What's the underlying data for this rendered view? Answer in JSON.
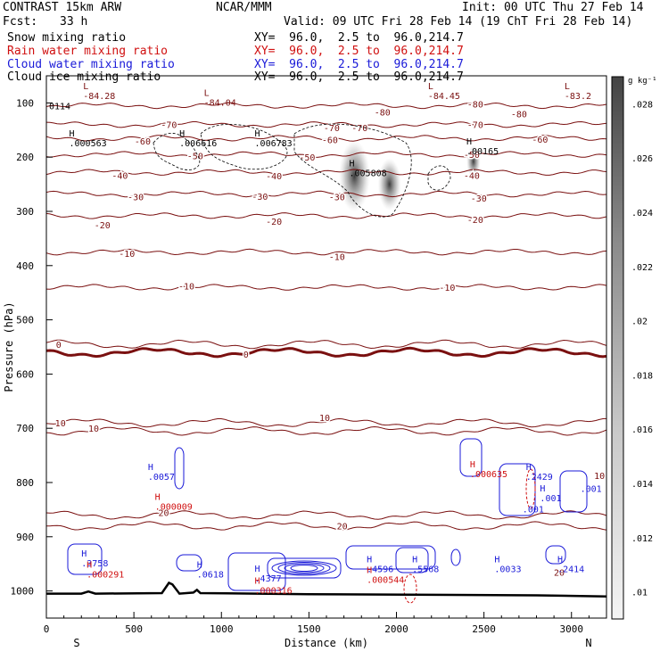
{
  "header": {
    "model": "CONTRAST 15km ARW",
    "center": "NCAR/MMM",
    "init": "Init: 00 UTC Thu 27 Feb 14",
    "fcst_label": "Fcst:",
    "fcst_value": "33 h",
    "valid": "Valid: 09 UTC Fri 28 Feb 14 (19 ChT Fri 28 Feb 14)"
  },
  "legend": [
    {
      "label": "Snow mixing ratio",
      "xy": "XY=  96.0,  2.5 to  96.0,214.7",
      "color": "#000000"
    },
    {
      "label": "Rain water mixing ratio",
      "xy": "XY=  96.0,  2.5 to  96.0,214.7",
      "color": "#d01010"
    },
    {
      "label": "Cloud water mixing ratio",
      "xy": "XY=  96.0,  2.5 to  96.0,214.7",
      "color": "#1a1ad8"
    },
    {
      "label": "Cloud ice mixing ratio",
      "xy": "XY=  96.0,  2.5 to  96.0,214.7",
      "color": "#000000"
    }
  ],
  "colors": {
    "temperature_contour": "#7a1010",
    "zero_isotherm": "#7a1010",
    "rain": "#d01010",
    "cloud_water": "#1a1ad8",
    "ice": "#000000",
    "terrain": "#000000"
  },
  "chart_data": {
    "type": "contour",
    "xlabel": "Distance (km)",
    "ylabel": "Pressure (hPa)",
    "xlim": [
      0,
      3200
    ],
    "ylim": [
      1050,
      50
    ],
    "x_ticks": [
      0,
      500,
      1000,
      1500,
      2000,
      2500,
      3000
    ],
    "y_ticks": [
      100,
      200,
      300,
      400,
      500,
      600,
      700,
      800,
      900,
      1000
    ],
    "x_end_labels": {
      "left": "S",
      "right": "N"
    },
    "colorbar": {
      "units": "g kg⁻¹",
      "ticks": [
        ".01",
        ".012",
        ".014",
        ".016",
        ".018",
        ".02",
        ".022",
        ".024",
        ".026",
        ".028"
      ]
    },
    "isotherms": [
      {
        "label": "-80",
        "p": 105
      },
      {
        "label": "-70",
        "p": 140
      },
      {
        "label": "-60",
        "p": 165
      },
      {
        "label": "-50",
        "p": 195
      },
      {
        "label": "-40",
        "p": 228
      },
      {
        "label": "-30",
        "p": 268
      },
      {
        "label": "-20",
        "p": 308
      },
      {
        "label": "-10",
        "p": 375
      },
      {
        "label": "-10",
        "p": 440
      },
      {
        "label": "0",
        "p": 545
      },
      {
        "label": "0",
        "p": 560
      },
      {
        "label": "10",
        "p": 705
      },
      {
        "label": "10",
        "p": 690
      },
      {
        "label": "20",
        "p": 860
      },
      {
        "label": "20",
        "p": 880
      }
    ],
    "isotherm_labels": [
      {
        "text": "-80",
        "x": 2450,
        "p": 102
      },
      {
        "text": "-80",
        "x": 1920,
        "p": 117
      },
      {
        "text": "-80",
        "x": 2700,
        "p": 120
      },
      {
        "text": "-70",
        "x": 700,
        "p": 140
      },
      {
        "text": "-70",
        "x": 1630,
        "p": 145
      },
      {
        "text": "-70",
        "x": 1790,
        "p": 145
      },
      {
        "text": "-70",
        "x": 2450,
        "p": 140
      },
      {
        "text": "-60",
        "x": 550,
        "p": 170
      },
      {
        "text": "-60",
        "x": 1620,
        "p": 168
      },
      {
        "text": "-60",
        "x": 2820,
        "p": 167
      },
      {
        "text": "-50",
        "x": 850,
        "p": 197
      },
      {
        "text": "-50",
        "x": 1490,
        "p": 200
      },
      {
        "text": "-50",
        "x": 2430,
        "p": 195
      },
      {
        "text": "-40",
        "x": 420,
        "p": 233
      },
      {
        "text": "-40",
        "x": 1300,
        "p": 234
      },
      {
        "text": "-40",
        "x": 2430,
        "p": 233
      },
      {
        "text": "-30",
        "x": 510,
        "p": 273
      },
      {
        "text": "-30",
        "x": 1220,
        "p": 272
      },
      {
        "text": "-30",
        "x": 1660,
        "p": 273
      },
      {
        "text": "-30",
        "x": 2470,
        "p": 275
      },
      {
        "text": "-20",
        "x": 320,
        "p": 325
      },
      {
        "text": "-20",
        "x": 1300,
        "p": 318
      },
      {
        "text": "-20",
        "x": 2450,
        "p": 315
      },
      {
        "text": "-10",
        "x": 460,
        "p": 377
      },
      {
        "text": "-10",
        "x": 1660,
        "p": 383
      },
      {
        "text": "-10",
        "x": 800,
        "p": 437
      },
      {
        "text": "-10",
        "x": 2290,
        "p": 440
      },
      {
        "text": "0",
        "x": 70,
        "p": 545
      },
      {
        "text": "0",
        "x": 1140,
        "p": 563
      },
      {
        "text": "10",
        "x": 80,
        "p": 690
      },
      {
        "text": "10",
        "x": 270,
        "p": 700
      },
      {
        "text": "10",
        "x": 1590,
        "p": 680
      },
      {
        "text": "10",
        "x": 3160,
        "p": 787
      },
      {
        "text": "20",
        "x": 670,
        "p": 855
      },
      {
        "text": "20",
        "x": 1690,
        "p": 880
      },
      {
        "text": "20",
        "x": 2930,
        "p": 965
      }
    ],
    "extrema": [
      {
        "mark": "L",
        "value": "-84.28",
        "x": 210,
        "p": 88,
        "color": "#7a1010"
      },
      {
        "mark": "L",
        "value": "-84.04",
        "x": 900,
        "p": 100,
        "color": "#7a1010"
      },
      {
        "mark": "L",
        "value": "-84.45",
        "x": 2180,
        "p": 88,
        "color": "#7a1010"
      },
      {
        "mark": "L",
        "value": "-83.2",
        "x": 2960,
        "p": 88,
        "color": "#7a1010"
      },
      {
        "mark": "H",
        "value": ".000563",
        "x": 130,
        "p": 175,
        "color": "#000000"
      },
      {
        "mark": "H",
        "value": ".006616",
        "x": 760,
        "p": 175,
        "color": "#000000"
      },
      {
        "mark": "H",
        "value": ".006783",
        "x": 1190,
        "p": 175,
        "color": "#000000"
      },
      {
        "mark": "H",
        "value": ".005808",
        "x": 1730,
        "p": 230,
        "color": "#000000"
      },
      {
        "mark": "H",
        "value": ".00165",
        "x": 2400,
        "p": 190,
        "color": "#000000"
      },
      {
        "mark": "H",
        "value": ".0057",
        "x": 580,
        "p": 790,
        "color": "#1a1ad8"
      },
      {
        "mark": "H",
        "value": ".000009",
        "x": 620,
        "p": 845,
        "color": "#d01010"
      },
      {
        "mark": "H",
        "value": ".000635",
        "x": 2420,
        "p": 785,
        "color": "#d01010"
      },
      {
        "mark": "H",
        "value": ".2429",
        "x": 2740,
        "p": 790,
        "color": "#1a1ad8"
      },
      {
        "mark": "H",
        "value": ".001",
        "x": 2820,
        "p": 830,
        "color": "#1a1ad8"
      },
      {
        "mark": "H",
        "value": ".3758",
        "x": 200,
        "p": 950,
        "color": "#1a1ad8"
      },
      {
        "mark": "H",
        "value": ".000291",
        "x": 230,
        "p": 970,
        "color": "#d01010"
      },
      {
        "mark": "H",
        "value": ".0618",
        "x": 860,
        "p": 970,
        "color": "#1a1ad8"
      },
      {
        "mark": "H",
        "value": ".4377",
        "x": 1190,
        "p": 978,
        "color": "#1a1ad8"
      },
      {
        "mark": "H",
        "value": ".000316",
        "x": 1190,
        "p": 1000,
        "color": "#d01010"
      },
      {
        "mark": "H",
        "value": ".4596",
        "x": 1830,
        "p": 960,
        "color": "#1a1ad8"
      },
      {
        "mark": "H",
        "value": ".000544",
        "x": 1830,
        "p": 980,
        "color": "#d01010"
      },
      {
        "mark": "H",
        "value": ".5568",
        "x": 2090,
        "p": 960,
        "color": "#1a1ad8"
      },
      {
        "mark": "H",
        "value": ".0033",
        "x": 2560,
        "p": 960,
        "color": "#1a1ad8"
      },
      {
        "mark": "H",
        "value": ".2414",
        "x": 2920,
        "p": 960,
        "color": "#1a1ad8"
      }
    ],
    "plain_labels": [
      {
        "text": "0114",
        "x": 15,
        "p": 112,
        "color": "#000000"
      },
      {
        "text": ".001",
        "x": 3050,
        "p": 817,
        "color": "#1a1ad8"
      },
      {
        "text": ".001",
        "x": 2720,
        "p": 855,
        "color": "#1a1ad8"
      }
    ],
    "ice_shading": [
      {
        "x": 1760,
        "p": 235,
        "dx": 40,
        "dp": 55,
        "max": ".028"
      },
      {
        "x": 1960,
        "p": 250,
        "dx": 30,
        "dp": 40,
        "max": ".018"
      },
      {
        "x": 2440,
        "p": 208,
        "dx": 18,
        "dp": 25,
        "max": ".014"
      }
    ],
    "terrain": [
      {
        "x": 0,
        "p": 1005
      },
      {
        "x": 200,
        "p": 1005
      },
      {
        "x": 240,
        "p": 1001
      },
      {
        "x": 280,
        "p": 1005
      },
      {
        "x": 660,
        "p": 1004
      },
      {
        "x": 700,
        "p": 985
      },
      {
        "x": 720,
        "p": 988
      },
      {
        "x": 760,
        "p": 1005
      },
      {
        "x": 840,
        "p": 1003
      },
      {
        "x": 860,
        "p": 998
      },
      {
        "x": 880,
        "p": 1004
      },
      {
        "x": 1500,
        "p": 1006
      },
      {
        "x": 2200,
        "p": 1007
      },
      {
        "x": 2800,
        "p": 1008
      },
      {
        "x": 3200,
        "p": 1010
      }
    ]
  }
}
